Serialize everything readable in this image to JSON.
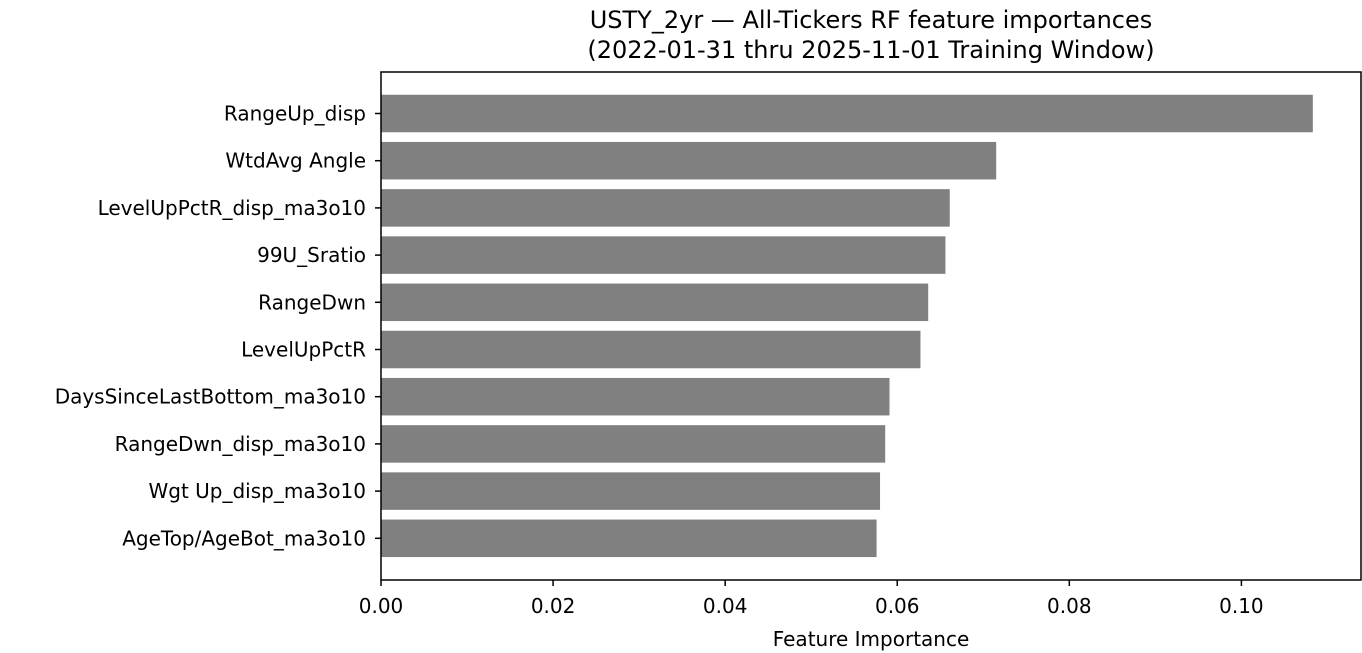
{
  "chart_data": {
    "type": "bar",
    "orientation": "horizontal",
    "title_line1": "USTY_2yr — All-Tickers RF feature importances",
    "title_line2": "(2022-01-31 thru 2025-11-01 Training Window)",
    "xlabel": "Feature Importance",
    "ylabel": "",
    "categories": [
      "RangeUp_disp",
      "WtdAvg Angle",
      "LevelUpPctR_disp_ma3o10",
      "99U_Sratio",
      "RangeDwn",
      "LevelUpPctR",
      "DaysSinceLastBottom_ma3o10",
      "RangeDwn_disp_ma3o10",
      "Wgt Up_disp_ma3o10",
      "AgeTop/AgeBot_ma3o10"
    ],
    "values": [
      0.1083,
      0.0715,
      0.0661,
      0.0656,
      0.0636,
      0.0627,
      0.0591,
      0.0586,
      0.058,
      0.0576
    ],
    "xlim": [
      0,
      0.1139
    ],
    "xticks": [
      0.0,
      0.02,
      0.04,
      0.06,
      0.08,
      0.1
    ],
    "xtick_labels": [
      "0.00",
      "0.02",
      "0.04",
      "0.06",
      "0.08",
      "0.10"
    ],
    "bar_color": "#808080",
    "grid": false
  }
}
